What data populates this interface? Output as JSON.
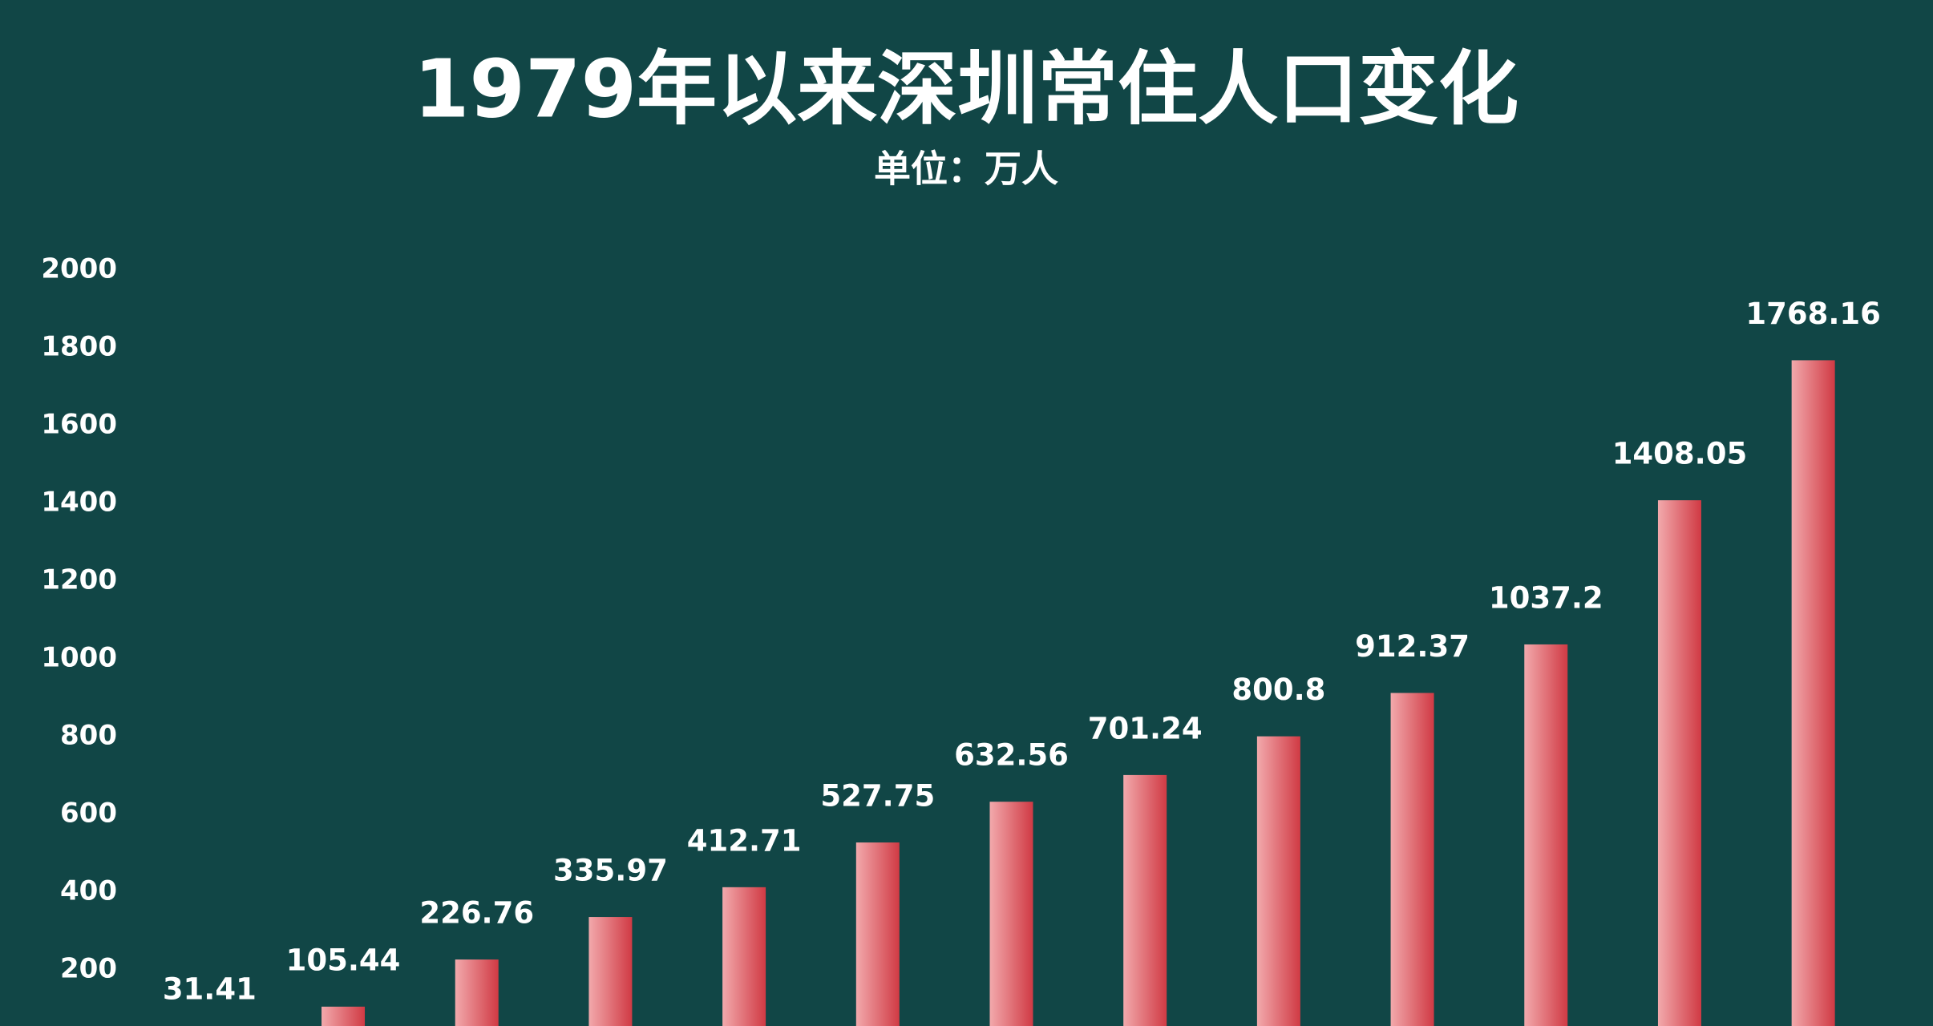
{
  "chart_data": {
    "type": "bar",
    "title": "1979年以来深圳常住人口变化",
    "subtitle": "单位：万人",
    "categories": [
      null,
      null,
      null,
      null,
      null,
      null,
      null,
      null,
      null,
      null,
      null,
      null,
      null
    ],
    "values": [
      31.41,
      105.44,
      226.76,
      335.97,
      412.71,
      527.75,
      632.56,
      701.24,
      800.8,
      912.37,
      1037.2,
      1408.05,
      1768.16
    ],
    "color": "#d8454d",
    "ylim": [
      0,
      2000
    ],
    "yticks": [
      200,
      400,
      600,
      800,
      1000,
      1200,
      1400,
      1600,
      1800,
      2000
    ],
    "grid": false
  }
}
